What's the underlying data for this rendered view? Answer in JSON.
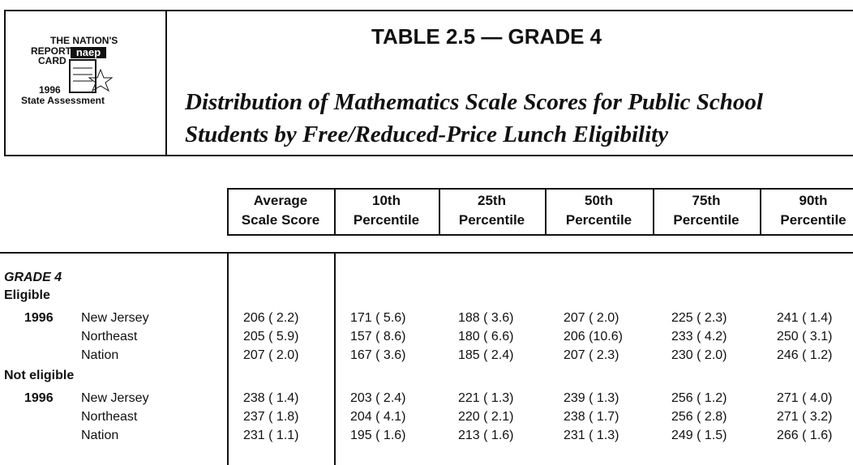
{
  "logo": {
    "line1": "THE NATION'S",
    "line2": "REPORT",
    "line3": "CARD",
    "mark": "naep",
    "year": "1996",
    "caption": "State Assessment"
  },
  "title": "TABLE 2.5 — GRADE 4",
  "subtitle": [
    "Distribution of Mathematics Scale Scores for Public School",
    "Students by Free/Reduced-Price Lunch Eligibility"
  ],
  "columns": [
    [
      "Average",
      "Scale Score"
    ],
    [
      "10th",
      "Percentile"
    ],
    [
      "25th",
      "Percentile"
    ],
    [
      "50th",
      "Percentile"
    ],
    [
      "75th",
      "Percentile"
    ],
    [
      "90th",
      "Percentile"
    ]
  ],
  "section": "GRADE 4",
  "groups": [
    {
      "name": "Eligible",
      "year": "1996",
      "rows": [
        {
          "label": "New Jersey",
          "cells": [
            "206 ( 2.2)",
            "171 ( 5.6)",
            "188 ( 3.6)",
            "207 ( 2.0)",
            "225 ( 2.3)",
            "241 ( 1.4)"
          ]
        },
        {
          "label": "Northeast",
          "cells": [
            "205 ( 5.9)",
            "157 ( 8.6)",
            "180 ( 6.6)",
            "206 (10.6)",
            "233 ( 4.2)",
            "250 ( 3.1)"
          ]
        },
        {
          "label": "Nation",
          "cells": [
            "207 ( 2.0)",
            "167 ( 3.6)",
            "185 ( 2.4)",
            "207 ( 2.3)",
            "230 ( 2.0)",
            "246 ( 1.2)"
          ]
        }
      ]
    },
    {
      "name": "Not eligible",
      "year": "1996",
      "rows": [
        {
          "label": "New Jersey",
          "cells": [
            "238 ( 1.4)",
            "203 ( 2.4)",
            "221 ( 1.3)",
            "239 ( 1.3)",
            "256 ( 1.2)",
            "271 ( 4.0)"
          ]
        },
        {
          "label": "Northeast",
          "cells": [
            "237 ( 1.8)",
            "204 ( 4.1)",
            "220 ( 2.1)",
            "238 ( 1.7)",
            "256 ( 2.8)",
            "271 ( 3.2)"
          ]
        },
        {
          "label": "Nation",
          "cells": [
            "231 ( 1.1)",
            "195 ( 1.6)",
            "213 ( 1.6)",
            "231 ( 1.3)",
            "249 ( 1.5)",
            "266 ( 1.6)"
          ]
        }
      ]
    }
  ]
}
